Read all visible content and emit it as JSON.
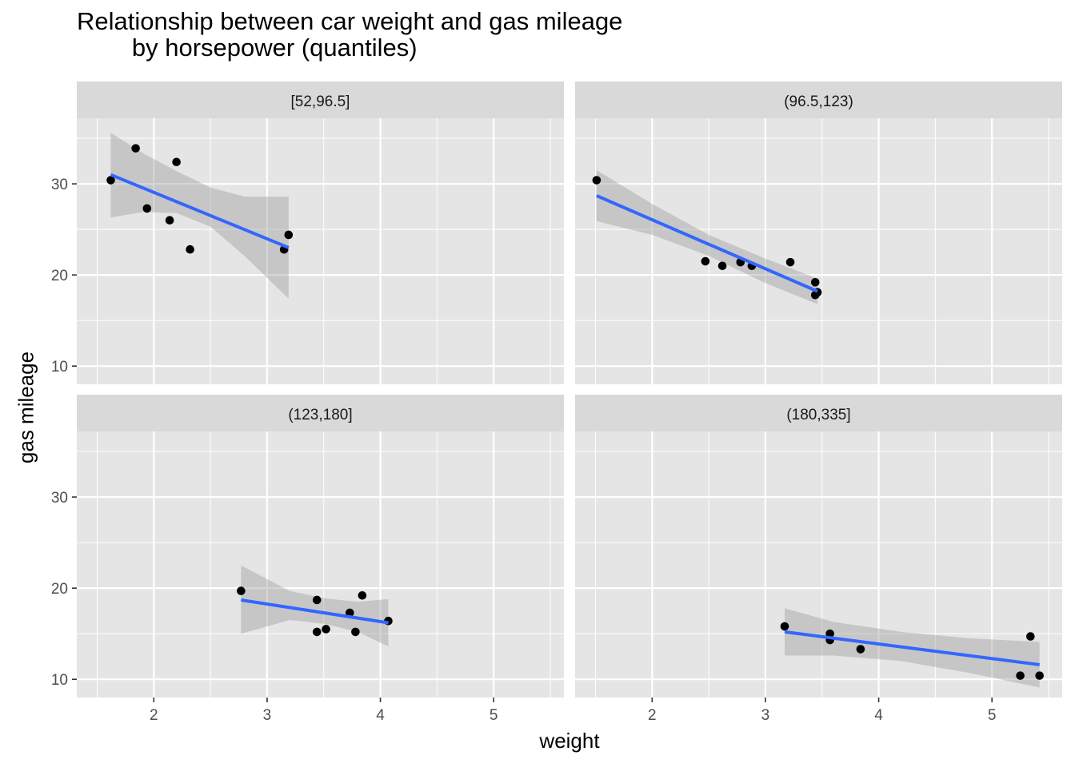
{
  "chart_data": {
    "type": "scatter",
    "title": "Relationship between car weight and gas mileage\n        by horsepower (quantiles)",
    "xlabel": "weight",
    "ylabel": "gas mileage",
    "xlim": [
      1.32,
      5.62
    ],
    "ylim": [
      8.0,
      37.2
    ],
    "xticks": [
      2,
      3,
      4,
      5
    ],
    "yticks": [
      10,
      20,
      30
    ],
    "colors": {
      "panel_bg": "#e5e5e5",
      "strip_bg": "#d9d9d9",
      "grid": "#ffffff",
      "point": "#000000",
      "smooth_line": "#3366ff",
      "ribbon": "#999999"
    },
    "facets": [
      {
        "label": "[52,96.5]",
        "points": [
          [
            1.62,
            30.4
          ],
          [
            1.84,
            33.9
          ],
          [
            1.94,
            27.3
          ],
          [
            2.14,
            26.0
          ],
          [
            2.2,
            32.4
          ],
          [
            2.32,
            22.8
          ],
          [
            3.15,
            22.8
          ],
          [
            3.19,
            24.4
          ]
        ],
        "fit": {
          "x0": 1.62,
          "y0": 31.0,
          "x1": 3.19,
          "y1": 23.0
        },
        "ribbon": [
          [
            1.62,
            35.6,
            26.3
          ],
          [
            1.9,
            33.4,
            26.9
          ],
          [
            2.2,
            31.4,
            26.8
          ],
          [
            2.5,
            29.6,
            25.3
          ],
          [
            2.8,
            28.6,
            22.1
          ],
          [
            3.19,
            28.6,
            17.4
          ]
        ]
      },
      {
        "label": "(96.5,123)",
        "points": [
          [
            1.51,
            30.4
          ],
          [
            2.47,
            21.5
          ],
          [
            2.62,
            21.0
          ],
          [
            2.78,
            21.4
          ],
          [
            2.88,
            21.0
          ],
          [
            3.22,
            21.4
          ],
          [
            3.44,
            19.2
          ],
          [
            3.44,
            17.8
          ],
          [
            3.46,
            18.1
          ]
        ],
        "fit": {
          "x0": 1.51,
          "y0": 28.7,
          "x1": 3.46,
          "y1": 18.2
        },
        "ribbon": [
          [
            1.51,
            31.5,
            25.9
          ],
          [
            2.0,
            27.8,
            24.4
          ],
          [
            2.5,
            24.4,
            22.1
          ],
          [
            3.0,
            21.8,
            19.1
          ],
          [
            3.46,
            19.6,
            16.8
          ]
        ]
      },
      {
        "label": "(123,180]",
        "points": [
          [
            2.77,
            19.7
          ],
          [
            3.44,
            18.7
          ],
          [
            3.44,
            15.2
          ],
          [
            3.52,
            15.5
          ],
          [
            3.73,
            17.3
          ],
          [
            3.78,
            15.2
          ],
          [
            3.84,
            19.2
          ],
          [
            4.07,
            16.4
          ]
        ],
        "fit": {
          "x0": 2.77,
          "y0": 18.7,
          "x1": 4.07,
          "y1": 16.2
        },
        "ribbon": [
          [
            2.77,
            22.5,
            15.0
          ],
          [
            3.2,
            19.7,
            16.5
          ],
          [
            3.5,
            18.9,
            16.1
          ],
          [
            3.8,
            18.5,
            15.2
          ],
          [
            4.07,
            18.8,
            13.6
          ]
        ]
      },
      {
        "label": "(180,335]",
        "points": [
          [
            3.17,
            15.8
          ],
          [
            3.57,
            15.0
          ],
          [
            3.57,
            14.3
          ],
          [
            3.84,
            13.3
          ],
          [
            5.25,
            10.4
          ],
          [
            5.34,
            14.7
          ],
          [
            5.42,
            10.4
          ]
        ],
        "fit": {
          "x0": 3.17,
          "y0": 15.2,
          "x1": 5.42,
          "y1": 11.6
        },
        "ribbon": [
          [
            3.17,
            17.8,
            12.6
          ],
          [
            3.6,
            16.3,
            12.6
          ],
          [
            4.2,
            15.2,
            12.0
          ],
          [
            4.8,
            14.5,
            10.7
          ],
          [
            5.42,
            14.1,
            9.1
          ]
        ]
      }
    ]
  }
}
